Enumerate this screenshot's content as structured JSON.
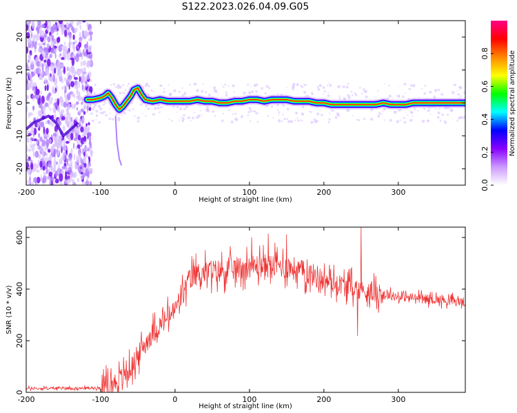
{
  "title": "S122.2023.026.04.09.G05",
  "chart_data": [
    {
      "type": "heatmap",
      "name": "spectrogram",
      "xlabel": "Height of straight line (km)",
      "ylabel": "Frequency (Hz)",
      "xlim": [
        -200,
        390
      ],
      "ylim": [
        -25,
        25
      ],
      "xticks": [
        -200,
        -100,
        0,
        100,
        200,
        300
      ],
      "yticks": [
        -20,
        -10,
        0,
        10,
        20
      ],
      "colorbar": {
        "label": "Normalized spectral amplitude",
        "range": [
          0,
          1
        ],
        "ticks": [
          "0.0",
          "0.2",
          "0.4",
          "0.6",
          "0.8"
        ],
        "tick_values": [
          0.0,
          0.2,
          0.4,
          0.6,
          0.8
        ],
        "colors": [
          "#ffffff",
          "#cc99ff",
          "#8800ff",
          "#0000ff",
          "#00ffff",
          "#00ff00",
          "#ffff00",
          "#ff8800",
          "#ff0000",
          "#ff0088"
        ]
      },
      "ridge": {
        "x": [
          -118,
          -110,
          -100,
          -95,
          -90,
          -85,
          -80,
          -75,
          -70,
          -65,
          -60,
          -55,
          -50,
          -45,
          -40,
          -30,
          -20,
          -10,
          0,
          10,
          20,
          30,
          40,
          50,
          60,
          70,
          80,
          90,
          100,
          110,
          120,
          130,
          140,
          150,
          160,
          170,
          180,
          190,
          200,
          210,
          220,
          230,
          240,
          250,
          260,
          270,
          280,
          290,
          300,
          310,
          320,
          330,
          340,
          350,
          360,
          370,
          380,
          390
        ],
        "y": [
          1.0,
          1.0,
          1.5,
          2.0,
          3.0,
          1.5,
          -0.5,
          -2.0,
          -1.0,
          0.5,
          2.0,
          4.0,
          4.5,
          2.5,
          1.0,
          0.5,
          1.0,
          0.5,
          0.5,
          0.5,
          0.5,
          1.0,
          0.5,
          0.5,
          0.0,
          0.0,
          0.5,
          0.5,
          1.0,
          1.0,
          0.5,
          1.0,
          1.0,
          1.0,
          0.5,
          0.5,
          0.5,
          0.0,
          0.0,
          -0.5,
          -0.5,
          -0.5,
          -0.5,
          -0.5,
          -0.5,
          -0.5,
          0.0,
          -0.5,
          -0.5,
          -0.5,
          0.0,
          0.0,
          0.0,
          0.0,
          0.0,
          0.0,
          0.0,
          0.0
        ]
      },
      "noise_region": {
        "x": [
          -200,
          -120
        ],
        "y": [
          -25,
          25
        ]
      }
    },
    {
      "type": "line",
      "name": "snr",
      "xlabel": "Height of straight line (km)",
      "ylabel": "SNR (10 * v/v)",
      "xlim": [
        -200,
        390
      ],
      "ylim": [
        0,
        640
      ],
      "xticks": [
        -200,
        -100,
        0,
        100,
        200,
        300
      ],
      "yticks": [
        0,
        200,
        400,
        600
      ],
      "color": "#ee3333",
      "series": [
        {
          "x": [
            -200,
            -180,
            -160,
            -140,
            -120,
            -100,
            -90,
            -80,
            -70,
            -60,
            -50,
            -40,
            -30,
            -20,
            -10,
            0,
            10,
            20,
            30,
            40,
            50,
            60,
            70,
            80,
            90,
            100,
            110,
            120,
            130,
            140,
            150,
            160,
            170,
            180,
            190,
            200,
            210,
            220,
            230,
            240,
            250,
            260,
            270,
            280,
            290,
            300,
            310,
            320,
            330,
            340,
            350,
            360,
            370,
            380,
            390
          ],
          "y": [
            15,
            15,
            16,
            16,
            16,
            18,
            25,
            40,
            60,
            90,
            140,
            190,
            230,
            260,
            290,
            320,
            380,
            440,
            460,
            465,
            470,
            470,
            475,
            480,
            485,
            490,
            490,
            490,
            490,
            490,
            485,
            480,
            470,
            460,
            450,
            435,
            425,
            420,
            415,
            405,
            395,
            390,
            385,
            380,
            375,
            370,
            368,
            366,
            364,
            362,
            360,
            358,
            355,
            352,
            350
          ],
          "spikes": [
            {
              "x": 250,
              "y": 640
            },
            {
              "x": 245,
              "y": 218
            },
            {
              "x": 125,
              "y": 615
            },
            {
              "x": 150,
              "y": 612
            },
            {
              "x": 103,
              "y": 600
            }
          ]
        }
      ]
    }
  ]
}
